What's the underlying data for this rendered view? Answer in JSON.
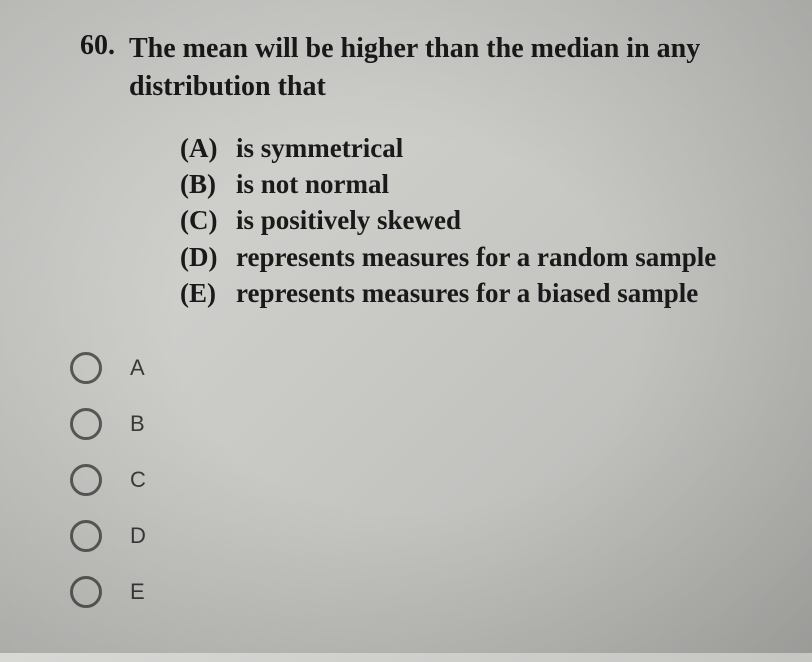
{
  "question": {
    "number": "60.",
    "text": "The mean will be higher than the median in any distribution that"
  },
  "options": [
    {
      "letter": "(A)",
      "text": "is symmetrical"
    },
    {
      "letter": "(B)",
      "text": "is not normal"
    },
    {
      "letter": "(C)",
      "text": "is positively skewed"
    },
    {
      "letter": "(D)",
      "text": "represents measures for a random sample"
    },
    {
      "letter": "(E)",
      "text": "represents measures for a biased sample"
    }
  ],
  "answers": [
    {
      "label": "A"
    },
    {
      "label": "B"
    },
    {
      "label": "C"
    },
    {
      "label": "D"
    },
    {
      "label": "E"
    }
  ],
  "colors": {
    "text": "#1a1a1a",
    "radio_border": "#5a5a58",
    "answer_label": "#3a3a38",
    "bg_light": "#d8d8d5",
    "bg_dark": "#b5b5b2"
  },
  "typography": {
    "question_fontsize": 28,
    "option_fontsize": 27,
    "answer_fontsize": 22
  }
}
